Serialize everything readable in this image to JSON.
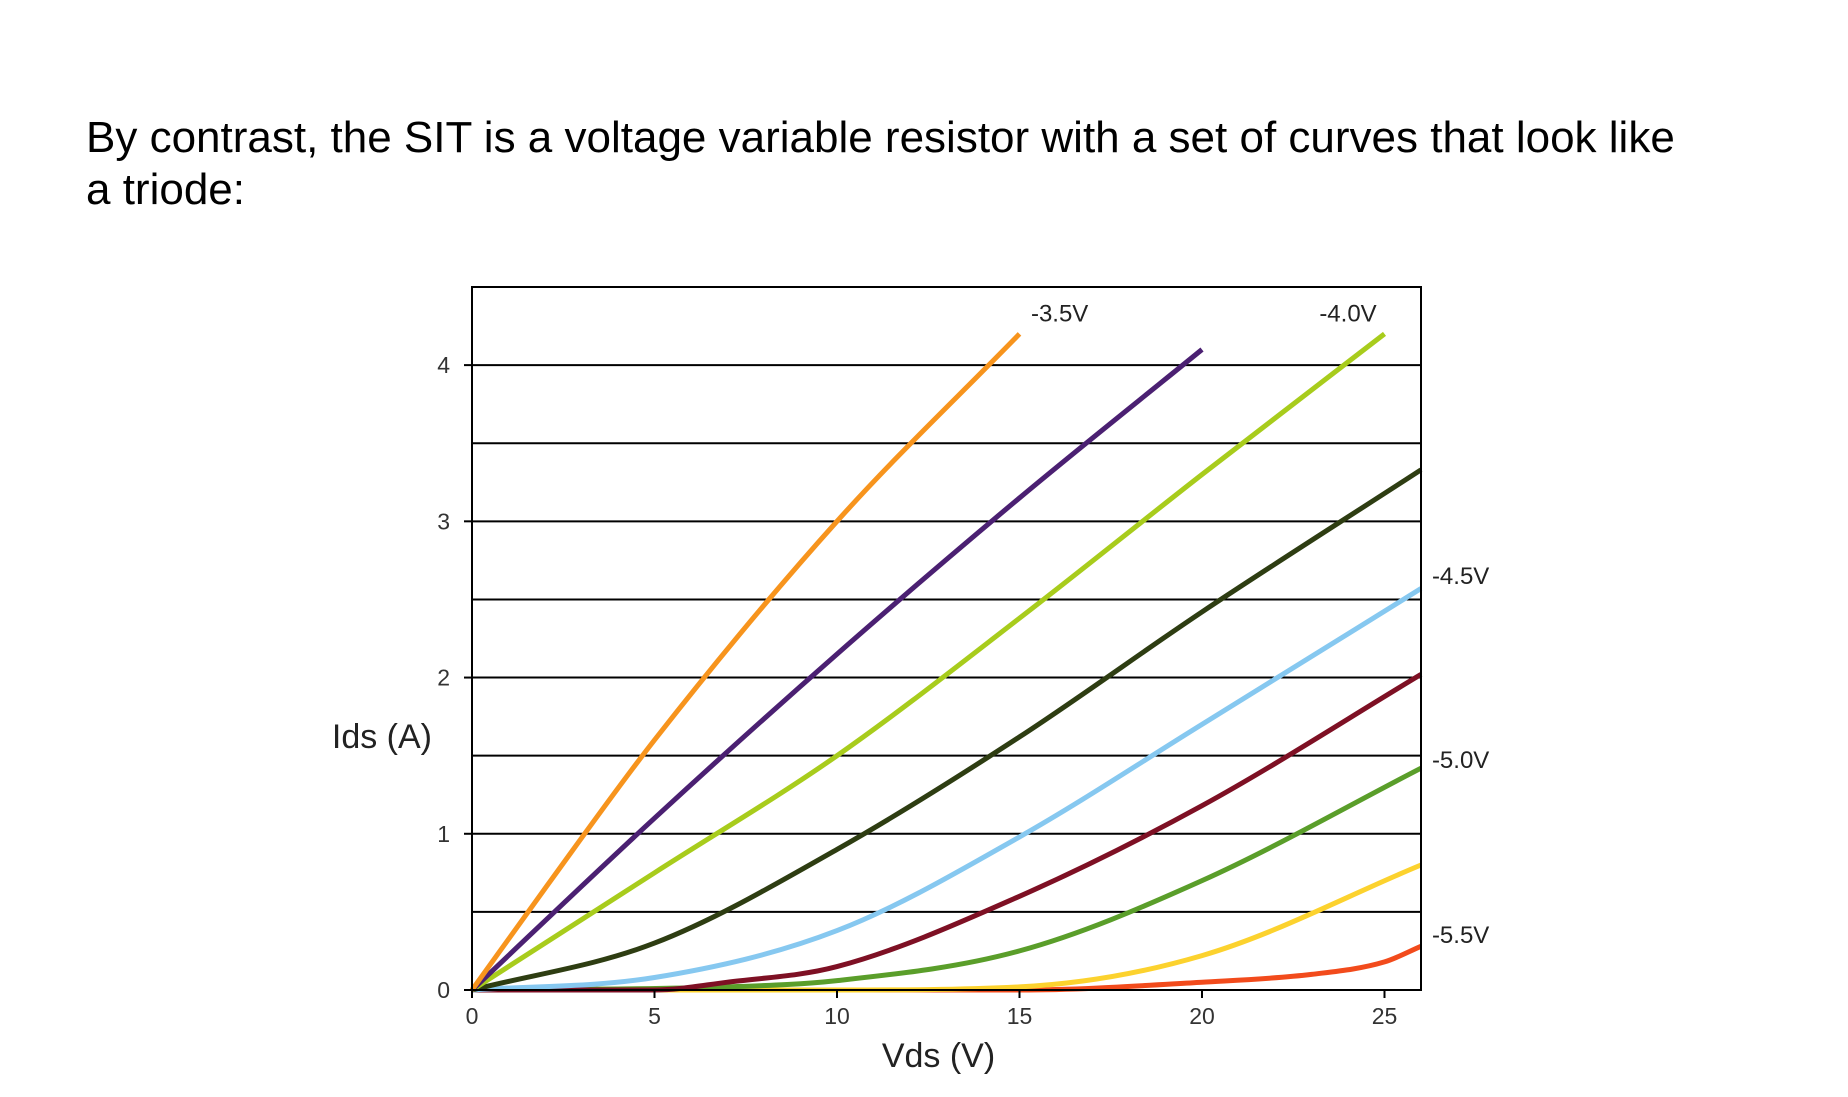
{
  "slide": {
    "text": "By contrast, the SIT is a voltage variable resistor with a set of curves that look like a triode:"
  },
  "chart_data": {
    "type": "line",
    "title": "",
    "xlabel": "Vds (V)",
    "ylabel": "Ids (A)",
    "xlim": [
      0,
      26
    ],
    "ylim": [
      0,
      4.5
    ],
    "xticks": [
      0,
      5,
      10,
      15,
      20,
      25
    ],
    "yticks": [
      0,
      1,
      2,
      3,
      4
    ],
    "grid": "horizontal every 0.5",
    "curve_labels": [
      {
        "text": "-3.5V",
        "x": 16.1,
        "y": 4.28
      },
      {
        "text": "-4.0V",
        "x": 24.0,
        "y": 4.28
      },
      {
        "text": "-4.5V",
        "x": 26.3,
        "y": 2.6
      },
      {
        "text": "-5.0V",
        "x": 26.3,
        "y": 1.42
      },
      {
        "text": "-5.5V",
        "x": 26.3,
        "y": 0.3
      }
    ],
    "series": [
      {
        "color": "#f7941d",
        "x": [
          0,
          2,
          5,
          10,
          15
        ],
        "y": [
          0,
          0.65,
          1.6,
          3.0,
          4.2
        ]
      },
      {
        "color": "#4b2072",
        "x": [
          0,
          5,
          10,
          15,
          20
        ],
        "y": [
          0,
          1.1,
          2.15,
          3.15,
          4.1
        ]
      },
      {
        "color": "#a8cc1c",
        "x": [
          0,
          5,
          10,
          15,
          20,
          25
        ],
        "y": [
          0,
          0.75,
          1.5,
          2.38,
          3.3,
          4.2
        ]
      },
      {
        "color": "#2e3d12",
        "x": [
          0,
          5,
          10,
          15,
          20,
          26
        ],
        "y": [
          0,
          0.3,
          0.9,
          1.62,
          2.42,
          3.33
        ]
      },
      {
        "color": "#86c8f0",
        "x": [
          0,
          5,
          10,
          15,
          20,
          26
        ],
        "y": [
          0,
          0.08,
          0.38,
          0.98,
          1.7,
          2.57
        ]
      },
      {
        "color": "#7e1024",
        "x": [
          0,
          5,
          7,
          10,
          15,
          20,
          26
        ],
        "y": [
          0,
          0.0,
          0.05,
          0.15,
          0.6,
          1.18,
          2.02
        ]
      },
      {
        "color": "#5a9e2a",
        "x": [
          0,
          7,
          10,
          15,
          20,
          26
        ],
        "y": [
          0,
          0.02,
          0.06,
          0.25,
          0.7,
          1.42
        ]
      },
      {
        "color": "#fcd22e",
        "x": [
          0,
          10,
          15,
          20,
          26
        ],
        "y": [
          0,
          0.0,
          0.02,
          0.22,
          0.8
        ]
      },
      {
        "color": "#f24b1c",
        "x": [
          0,
          15,
          20,
          23,
          25,
          26
        ],
        "y": [
          0,
          0.0,
          0.05,
          0.1,
          0.18,
          0.28
        ]
      }
    ]
  }
}
